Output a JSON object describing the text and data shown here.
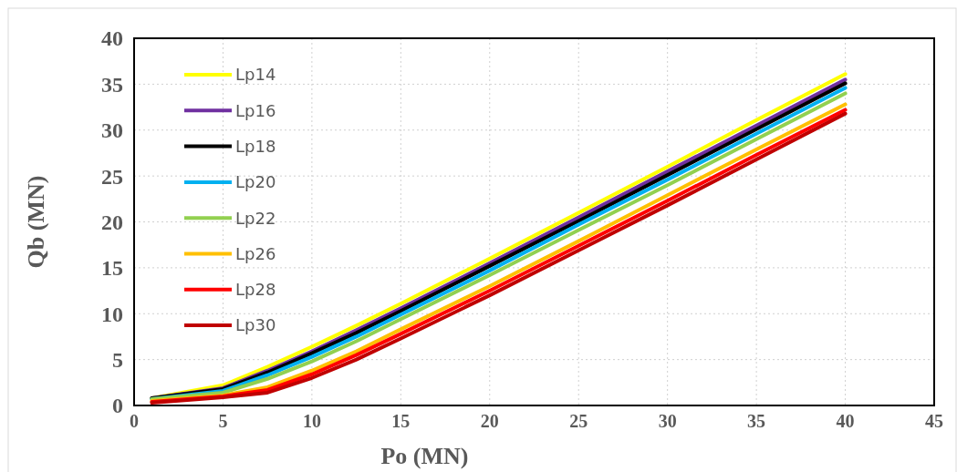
{
  "chart_data": {
    "type": "line",
    "xlabel": "Po (MN)",
    "ylabel": "Qb (MN)",
    "x": [
      1,
      5,
      7.5,
      10,
      12.5,
      15,
      20,
      25,
      30,
      35,
      40
    ],
    "xlim": [
      0,
      45
    ],
    "xticks": [
      0,
      5,
      10,
      15,
      20,
      25,
      30,
      35,
      40,
      45
    ],
    "ylim": [
      0,
      40
    ],
    "yticks": [
      0,
      5,
      10,
      15,
      20,
      25,
      30,
      35,
      40
    ],
    "grid": true,
    "legend": "top left",
    "marker": "none",
    "line_style": "solid",
    "series": [
      {
        "name": "Lp14",
        "color": "#ffff00",
        "values": [
          0.8,
          2.2,
          4.2,
          6.4,
          8.7,
          11.1,
          16.0,
          21.0,
          26.0,
          31.1,
          36.1
        ]
      },
      {
        "name": "Lp16",
        "color": "#7030a0",
        "values": [
          0.8,
          1.9,
          3.8,
          5.9,
          8.2,
          10.6,
          15.5,
          20.5,
          25.5,
          30.5,
          35.5
        ]
      },
      {
        "name": "Lp18",
        "color": "#000000",
        "values": [
          0.8,
          1.8,
          3.6,
          5.7,
          7.9,
          10.3,
          15.2,
          20.1,
          25.1,
          30.1,
          35.1
        ]
      },
      {
        "name": "Lp20",
        "color": "#00b0f0",
        "values": [
          0.7,
          1.6,
          3.3,
          5.3,
          7.5,
          9.9,
          14.7,
          19.7,
          24.6,
          29.6,
          34.6
        ]
      },
      {
        "name": "Lp22",
        "color": "#92d050",
        "values": [
          0.7,
          1.4,
          2.9,
          4.8,
          7.0,
          9.4,
          14.2,
          19.1,
          24.0,
          29.0,
          34.0
        ]
      },
      {
        "name": "Lp26",
        "color": "#ffc000",
        "values": [
          0.5,
          1.1,
          2.0,
          3.8,
          5.9,
          8.3,
          13.0,
          17.9,
          22.9,
          27.9,
          32.8
        ]
      },
      {
        "name": "Lp28",
        "color": "#ff0000",
        "values": [
          0.4,
          1.0,
          1.7,
          3.4,
          5.5,
          7.8,
          12.5,
          17.4,
          22.3,
          27.3,
          32.2
        ]
      },
      {
        "name": "Lp30",
        "color": "#c00000",
        "values": [
          0.3,
          0.9,
          1.4,
          3.0,
          5.0,
          7.3,
          12.0,
          16.9,
          21.8,
          26.8,
          31.8
        ]
      }
    ]
  }
}
